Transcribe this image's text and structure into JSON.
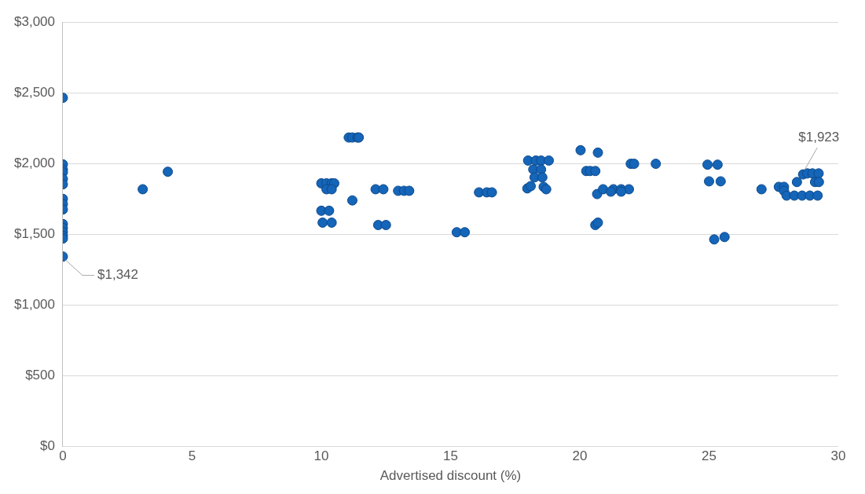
{
  "chart_data": {
    "type": "scatter",
    "xlabel": "Advertised discount (%)",
    "xlim": [
      0,
      30
    ],
    "xticks": [
      0,
      5,
      10,
      15,
      20,
      25,
      30
    ],
    "ylim": [
      0,
      3000
    ],
    "yticks": [
      {
        "value": 0,
        "label": "$0"
      },
      {
        "value": 500,
        "label": "$500"
      },
      {
        "value": 1000,
        "label": "$1,000"
      },
      {
        "value": 1500,
        "label": "$1,500"
      },
      {
        "value": 2000,
        "label": "$2,000"
      },
      {
        "value": 2500,
        "label": "$2,500"
      },
      {
        "value": 3000,
        "label": "$3,000"
      }
    ],
    "grid": "y",
    "marker": "circle",
    "series": [
      {
        "color": "#1565b8",
        "x": [
          0,
          0,
          0,
          0,
          0,
          0,
          0,
          0,
          0,
          0,
          0,
          0,
          0,
          0,
          0,
          3.09,
          4.06,
          10.0,
          10.2,
          10.4,
          10.5,
          10.2,
          10.4,
          10.0,
          10.3,
          10.05,
          10.4,
          11.06,
          11.2,
          11.4,
          11.45,
          11.2,
          12.1,
          12.4,
          12.2,
          12.5,
          12.97,
          13.2,
          13.4,
          15.24,
          15.55,
          16.1,
          16.4,
          16.6,
          18.0,
          18.3,
          18.5,
          18.8,
          18.2,
          18.5,
          18.25,
          18.55,
          17.97,
          18.1,
          18.6,
          18.7,
          20.03,
          20.7,
          20.25,
          20.4,
          20.6,
          20.67,
          20.9,
          21.3,
          21.6,
          21.9,
          21.2,
          21.6,
          20.6,
          20.7,
          21.97,
          22.1,
          22.94,
          24.94,
          25.33,
          25.0,
          25.45,
          25.2,
          25.6,
          27.03,
          27.7,
          27.9,
          27.9,
          28.0,
          28.3,
          28.6,
          28.9,
          29.2,
          28.4,
          28.64,
          28.8,
          29.0,
          29.24,
          29.1,
          29.25
        ],
        "values": [
          2465,
          1994,
          1957,
          1938,
          1891,
          1853,
          1750,
          1713,
          1675,
          1572,
          1544,
          1516,
          1488,
          1469,
          1342,
          1818,
          1942,
          1860,
          1860,
          1860,
          1860,
          1818,
          1818,
          1666,
          1666,
          1582,
          1582,
          2184,
          2184,
          2184,
          2184,
          1739,
          1818,
          1818,
          1565,
          1565,
          1807,
          1807,
          1807,
          1514,
          1514,
          1796,
          1796,
          1796,
          2021,
          2021,
          2021,
          2021,
          1958,
          1958,
          1902,
          1902,
          1824,
          1840,
          1835,
          1818,
          2094,
          2077,
          1947,
          1947,
          1947,
          1784,
          1818,
          1818,
          1818,
          1818,
          1801,
          1801,
          1565,
          1582,
          1998,
          1998,
          1998,
          1992,
          1992,
          1874,
          1874,
          1463,
          1480,
          1818,
          1835,
          1835,
          1807,
          1773,
          1773,
          1773,
          1773,
          1773,
          1869,
          1923,
          1930,
          1930,
          1930,
          1869,
          1869
        ]
      }
    ],
    "annotations": [
      {
        "text": "$1,342",
        "x": 0,
        "y": 1342
      },
      {
        "text": "$1,923",
        "x": 28.64,
        "y": 1923
      }
    ]
  }
}
